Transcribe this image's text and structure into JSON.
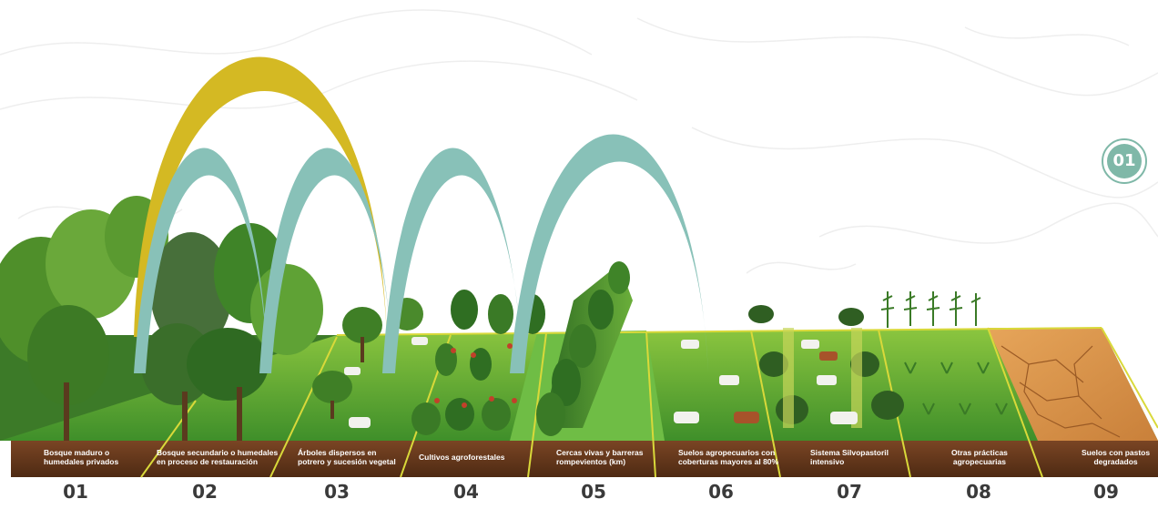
{
  "badge": "01",
  "colors": {
    "arc_primary": "#d4b923",
    "arc_secondary": "#88c1b8",
    "soil": "#6b3a1e",
    "grass": "#5aa83a",
    "dry_soil": "#d9954a",
    "divider": "#d9d93a",
    "accent": "#7fb8a8"
  },
  "zones": [
    {
      "number": "01",
      "label": "Bosque maduro o\nhumedales privados",
      "icon": "mature-forest"
    },
    {
      "number": "02",
      "label": "Bosque secundario o humedales\nen proceso de restauración",
      "icon": "secondary-forest"
    },
    {
      "number": "03",
      "label": "Árboles dispersos en\npotrero y sucesión vegetal",
      "icon": "scattered-trees-pasture"
    },
    {
      "number": "04",
      "label": "Cultivos agroforestales",
      "icon": "agroforestry-crops"
    },
    {
      "number": "05",
      "label": "Cercas vivas y barreras\nrompevientos (km)",
      "icon": "living-fences"
    },
    {
      "number": "06",
      "label": "Suelos agropecuarios con\ncoberturas mayores al 80%",
      "icon": "covered-soils"
    },
    {
      "number": "07",
      "label": "Sistema Silvopastoril\nintensivo",
      "icon": "silvopastoral-system"
    },
    {
      "number": "08",
      "label": "Otras prácticas\nagropecuarias",
      "icon": "other-practices"
    },
    {
      "number": "09",
      "label": "Suelos con pastos\ndegradados",
      "icon": "degraded-soils"
    }
  ]
}
